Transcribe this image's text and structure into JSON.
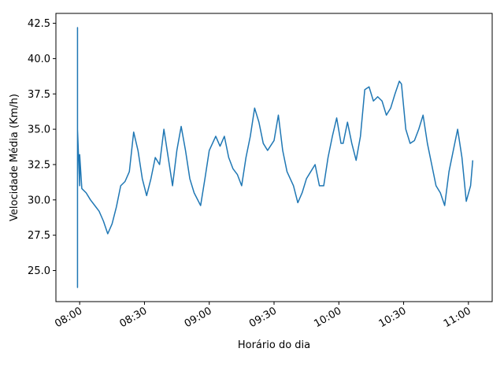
{
  "chart_data": {
    "type": "line",
    "xlabel": "Horário do dia",
    "ylabel": "Velocidade Média (Km/h)",
    "x": [
      "07:59",
      "07:59",
      "07:59",
      "07:59",
      "08:00",
      "08:00",
      "08:01",
      "08:03",
      "08:05",
      "08:07",
      "08:09",
      "08:11",
      "08:13",
      "08:15",
      "08:17",
      "08:19",
      "08:21",
      "08:23",
      "08:25",
      "08:27",
      "08:29",
      "08:31",
      "08:33",
      "08:35",
      "08:37",
      "08:39",
      "08:41",
      "08:43",
      "08:45",
      "08:47",
      "08:49",
      "08:51",
      "08:53",
      "08:56",
      "08:58",
      "09:00",
      "09:03",
      "09:05",
      "09:07",
      "09:09",
      "09:11",
      "09:13",
      "09:15",
      "09:17",
      "09:19",
      "09:21",
      "09:23",
      "09:25",
      "09:27",
      "09:30",
      "09:32",
      "09:34",
      "09:36",
      "09:39",
      "09:41",
      "09:43",
      "09:45",
      "09:47",
      "09:49",
      "09:51",
      "09:53",
      "09:55",
      "09:57",
      "09:59",
      "10:01",
      "10:02",
      "10:04",
      "10:06",
      "10:08",
      "10:10",
      "10:12",
      "10:14",
      "10:16",
      "10:18",
      "10:20",
      "10:22",
      "10:24",
      "10:26",
      "10:28",
      "10:29",
      "10:31",
      "10:33",
      "10:35",
      "10:37",
      "10:39",
      "10:41",
      "10:43",
      "10:45",
      "10:47",
      "10:49",
      "10:51",
      "10:53",
      "10:55",
      "10:57",
      "10:59",
      "11:01",
      "11:02"
    ],
    "series": [
      {
        "name": "Velocidade",
        "color": "#1f77b4",
        "values": [
          28.7,
          42.2,
          23.8,
          35.0,
          31.0,
          33.2,
          30.8,
          30.5,
          30.0,
          29.6,
          29.2,
          28.5,
          27.6,
          28.3,
          29.5,
          31.0,
          31.3,
          32.0,
          34.8,
          33.5,
          31.5,
          30.3,
          31.5,
          33.0,
          32.5,
          35.0,
          33.0,
          31.0,
          33.5,
          35.2,
          33.5,
          31.5,
          30.5,
          29.6,
          31.5,
          33.5,
          34.5,
          33.8,
          34.5,
          33.0,
          32.2,
          31.8,
          31.0,
          33.0,
          34.5,
          36.5,
          35.5,
          34.0,
          33.5,
          34.2,
          36.0,
          33.5,
          32.0,
          31.0,
          29.8,
          30.5,
          31.5,
          32.0,
          32.5,
          31.0,
          31.0,
          33.0,
          34.5,
          35.8,
          34.0,
          34.0,
          35.5,
          34.0,
          32.8,
          34.5,
          37.8,
          38.0,
          37.0,
          37.3,
          37.0,
          36.0,
          36.5,
          37.5,
          38.4,
          38.2,
          35.0,
          34.0,
          34.2,
          35.0,
          36.0,
          34.0,
          32.5,
          31.0,
          30.5,
          29.6,
          32.0,
          33.5,
          35.0,
          33.0,
          29.9,
          31.0,
          32.8
        ]
      }
    ],
    "xlim": [
      "07:49",
      "11:11"
    ],
    "xticks": [
      "08:00",
      "08:30",
      "09:00",
      "09:30",
      "10:00",
      "10:30",
      "11:00"
    ],
    "ylim": [
      22.8,
      43.2
    ],
    "yticks": [
      {
        "value": 25,
        "label": "25.0"
      },
      27.5,
      {
        "value": 30,
        "label": "30.0"
      },
      32.5,
      {
        "value": 35,
        "label": "35.0"
      },
      37.5,
      {
        "value": 40,
        "label": "40.0"
      },
      42.5
    ]
  }
}
